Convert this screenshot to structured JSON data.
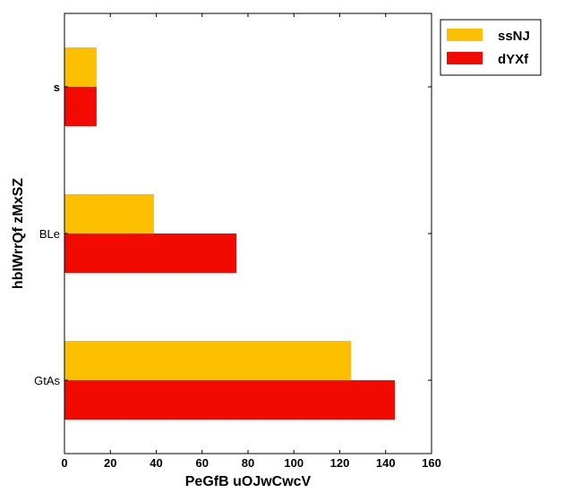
{
  "chart_data": {
    "type": "bar",
    "orientation": "horizontal",
    "categories": [
      "GtAs",
      "BLe",
      "s"
    ],
    "series": [
      {
        "name": "ssNJ",
        "values": [
          125,
          39,
          14
        ],
        "color": "#fcc000"
      },
      {
        "name": "dYXf",
        "values": [
          144,
          75,
          14
        ],
        "color": "#f20a00"
      }
    ],
    "xlabel": "PeGfB uOJwCwcV",
    "ylabel": "hbIWrrQf zMxSZ",
    "xlim": [
      0,
      160
    ],
    "xticks": [
      0,
      20,
      40,
      60,
      80,
      100,
      120,
      140,
      160
    ],
    "grid": false,
    "legend_position": "top-right-outside"
  }
}
